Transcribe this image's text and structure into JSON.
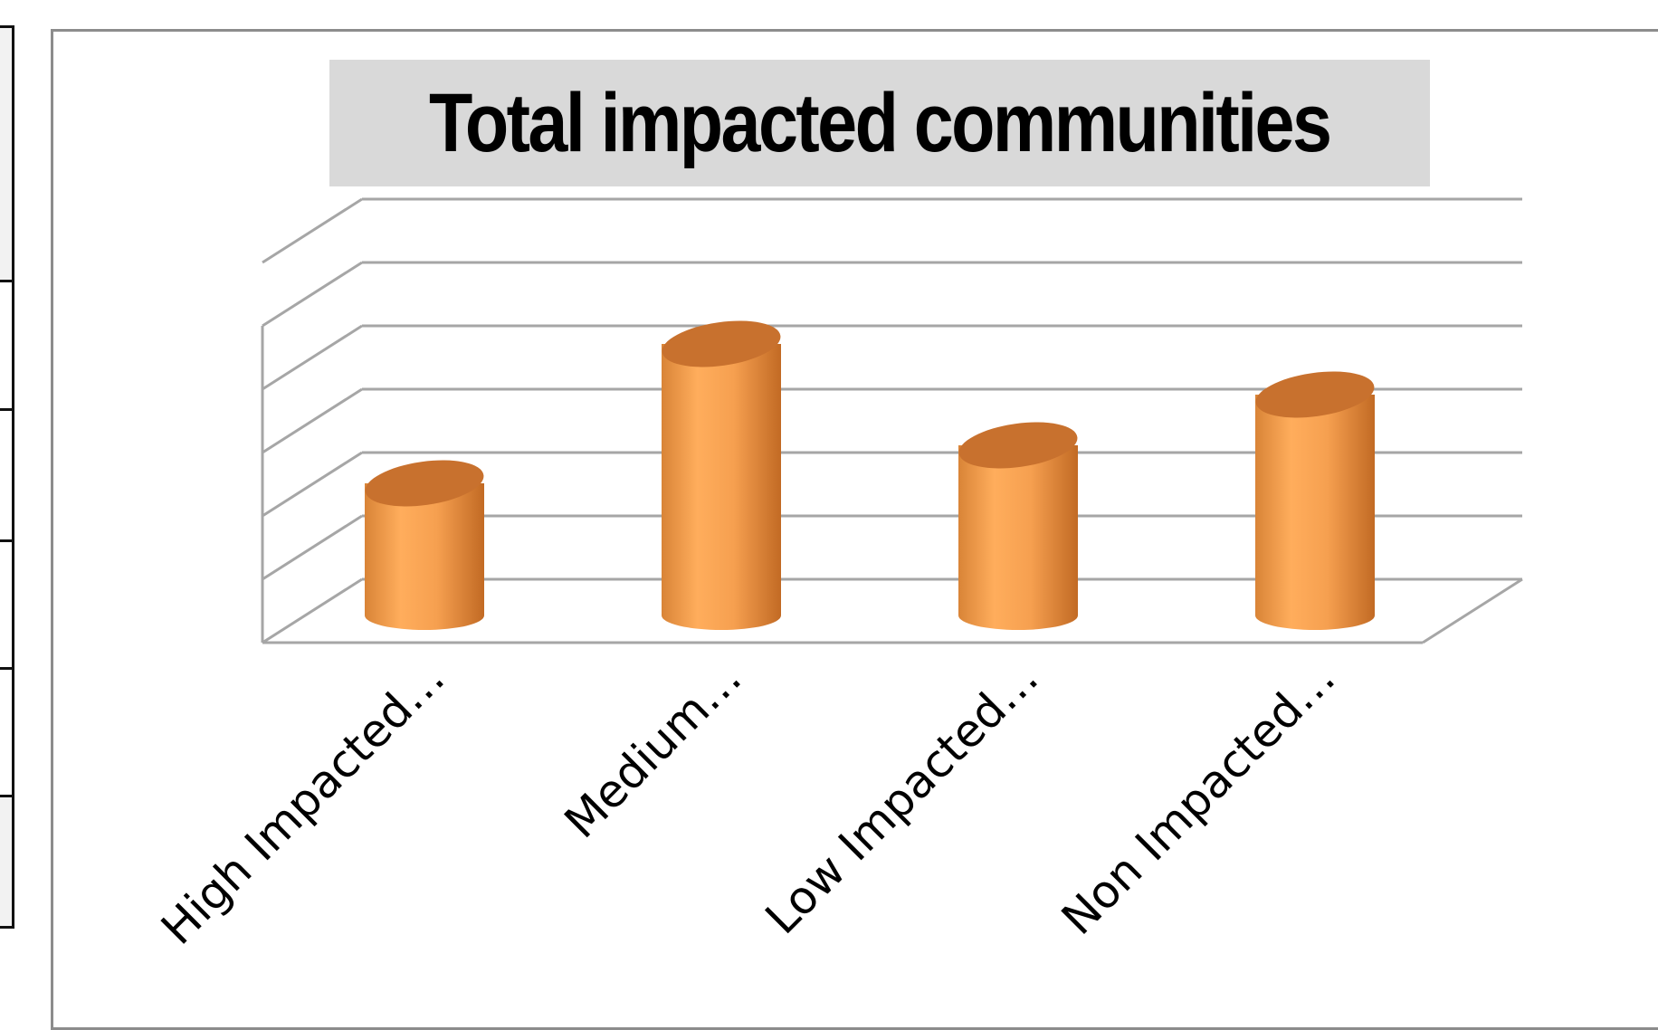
{
  "chart_data": {
    "type": "bar",
    "style": "3d-cylinder",
    "title": "Total impacted communities",
    "categories": [
      "High Impacted…",
      "Medium…",
      "Low Impacted…",
      "Non Impacted…"
    ],
    "values": [
      2.2,
      4.4,
      2.8,
      3.6
    ],
    "ylim": [
      0,
      6
    ],
    "xlabel": "",
    "ylabel": "",
    "grid": true,
    "legend": "none",
    "colors": {
      "bar_light": "#ffad5c",
      "bar_mid": "#f39a47",
      "bar_dark": "#c96f28",
      "bar_top": "#c8712e",
      "grid": "#a6a6a6"
    }
  }
}
